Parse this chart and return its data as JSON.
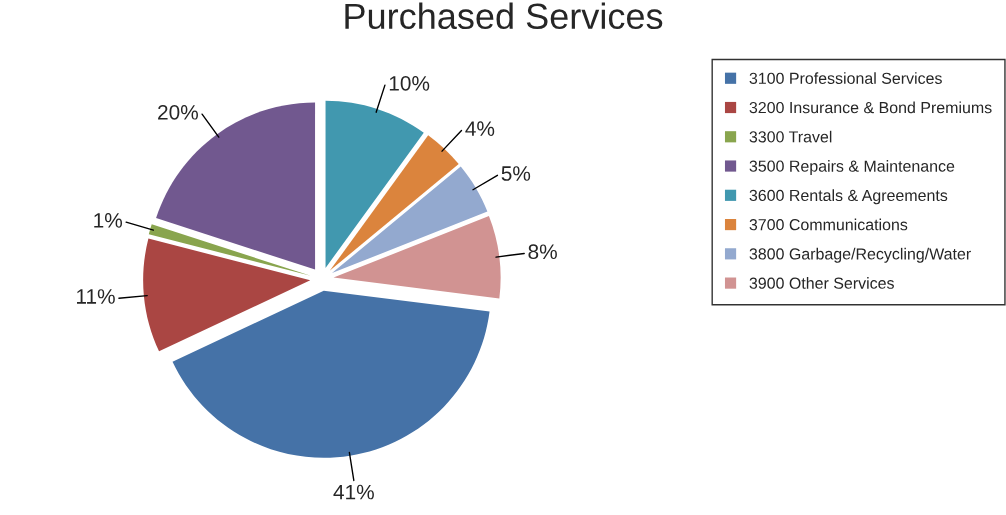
{
  "chart_data": {
    "type": "pie",
    "title": "Purchased Services",
    "categories": [
      "3100 Professional Services",
      "3200 Insurance & Bond Premiums",
      "3300 Travel",
      "3500 Repairs & Maintenance",
      "3600 Rentals & Agreements",
      "3700 Communications",
      "3800 Garbage/Recycling/Water",
      "3900 Other Services"
    ],
    "values": [
      41,
      11,
      1,
      20,
      10,
      4,
      5,
      8
    ],
    "value_labels": [
      "41%",
      "11%",
      "1%",
      "20%",
      "10%",
      "4%",
      "5%",
      "8%"
    ],
    "colors": [
      "#4572a7",
      "#aa4643",
      "#89a54e",
      "#71588f",
      "#4198af",
      "#db843d",
      "#93a9cf",
      "#d19392"
    ],
    "legend": "right"
  }
}
